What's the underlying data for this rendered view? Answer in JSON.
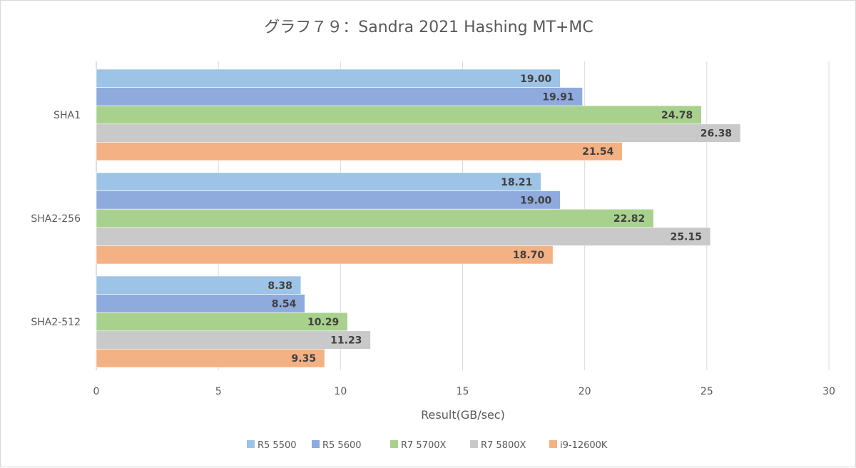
{
  "chart_data": {
    "type": "bar",
    "orientation": "horizontal",
    "title": "グラフ７９：Sandra 2021 Hashing MT+MC",
    "xlabel": "Result(GB/sec)",
    "ylabel": "",
    "xlim": [
      0,
      30
    ],
    "x_ticks": [
      0,
      5,
      10,
      15,
      20,
      25,
      30
    ],
    "grid": true,
    "legend_position": "bottom",
    "categories": [
      "SHA1",
      "SHA2-256",
      "SHA2-512"
    ],
    "series": [
      {
        "name": "R5 5500",
        "color": "#9dc3e6",
        "values": [
          19.0,
          18.21,
          8.38
        ],
        "labels": [
          "19.00",
          "18.21",
          "8.38"
        ]
      },
      {
        "name": "R5 5600",
        "color": "#8faadc",
        "values": [
          19.91,
          19.0,
          8.54
        ],
        "labels": [
          "19.91",
          "19.00",
          "8.54"
        ]
      },
      {
        "name": "R7 5700X",
        "color": "#a9d18e",
        "values": [
          24.78,
          22.82,
          10.29
        ],
        "labels": [
          "24.78",
          "22.82",
          "10.29"
        ]
      },
      {
        "name": "R7 5800X",
        "color": "#c9c9c9",
        "values": [
          26.38,
          25.15,
          11.23
        ],
        "labels": [
          "26.38",
          "25.15",
          "11.23"
        ]
      },
      {
        "name": "i9-12600K",
        "color": "#f4b183",
        "values": [
          21.54,
          18.7,
          9.35
        ],
        "labels": [
          "21.54",
          "18.70",
          "9.35"
        ]
      }
    ]
  }
}
